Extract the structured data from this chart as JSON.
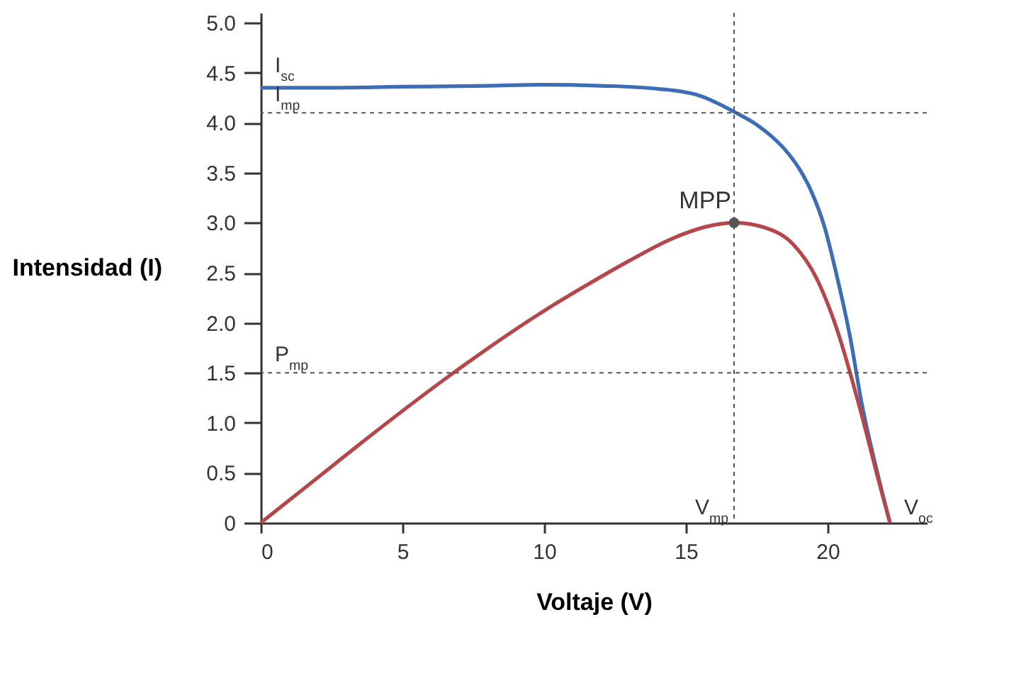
{
  "chart_data": {
    "type": "line",
    "xlabel": "Voltaje (V)",
    "ylabel": "Intensidad (I)",
    "xlim": [
      0,
      23.5
    ],
    "xticks": [
      0,
      5,
      10,
      15,
      20
    ],
    "ylim": [
      0,
      5.1
    ],
    "yticks": [
      {
        "value": 0,
        "label": "0"
      },
      0.5,
      {
        "value": 1,
        "label": "1.0"
      },
      1.5,
      {
        "value": 2,
        "label": "2.0"
      },
      2.5,
      {
        "value": 3,
        "label": "3.0"
      },
      3.5,
      {
        "value": 4,
        "label": "4.0"
      },
      4.5,
      {
        "value": 5,
        "label": "5.0"
      }
    ],
    "grid": false,
    "marker": "none",
    "series": [
      {
        "color": "#3d6db5",
        "x": [
          0,
          2,
          5,
          8,
          10,
          12,
          14,
          15.5,
          16.7,
          17.5,
          18.0,
          18.5,
          19.0,
          19.4,
          19.9,
          20.3,
          20.8,
          21.2,
          21.8,
          22.2
        ],
        "values": [
          4.35,
          4.35,
          4.36,
          4.37,
          4.38,
          4.37,
          4.34,
          4.27,
          4.11,
          3.98,
          3.87,
          3.73,
          3.54,
          3.33,
          2.95,
          2.5,
          1.85,
          1.2,
          0.45,
          0
        ]
      },
      {
        "color": "#b5474b",
        "x": [
          0,
          2,
          4,
          6.8,
          10,
          11.4,
          13,
          14.5,
          15.7,
          16.7,
          17.8,
          18.8,
          19.6,
          20.3,
          21.2,
          21.8,
          22.2
        ],
        "values": [
          0,
          0.45,
          0.9,
          1.5,
          2.12,
          2.36,
          2.62,
          2.84,
          2.96,
          3.0,
          2.95,
          2.78,
          2.45,
          1.96,
          1.08,
          0.42,
          0
        ]
      },
      {
        "type": "scatter",
        "marker": "circle",
        "color": "#555555",
        "x": [
          16.7
        ],
        "values": [
          3.0
        ]
      }
    ],
    "ref_lines": [
      {
        "axis": "y",
        "value": 4.1,
        "label": "I$_{mp}$",
        "color": "#555555",
        "line_style": "dashed"
      },
      {
        "axis": "y",
        "value": 1.5,
        "label": "P$_{mp}$",
        "color": "#555555",
        "line_style": "dashed"
      },
      {
        "axis": "x",
        "value": 16.7,
        "label": "V$_{mp}$",
        "color": "#555555",
        "line_style": "dashed"
      }
    ],
    "annotations": [
      {
        "text": "I$_{sc}$",
        "x": 0,
        "y": 4.35
      },
      {
        "text": "V$_{oc}$",
        "x": 22.2,
        "y": 0
      },
      {
        "text": "MPP",
        "x": 16.7,
        "y": 3.0
      }
    ]
  }
}
